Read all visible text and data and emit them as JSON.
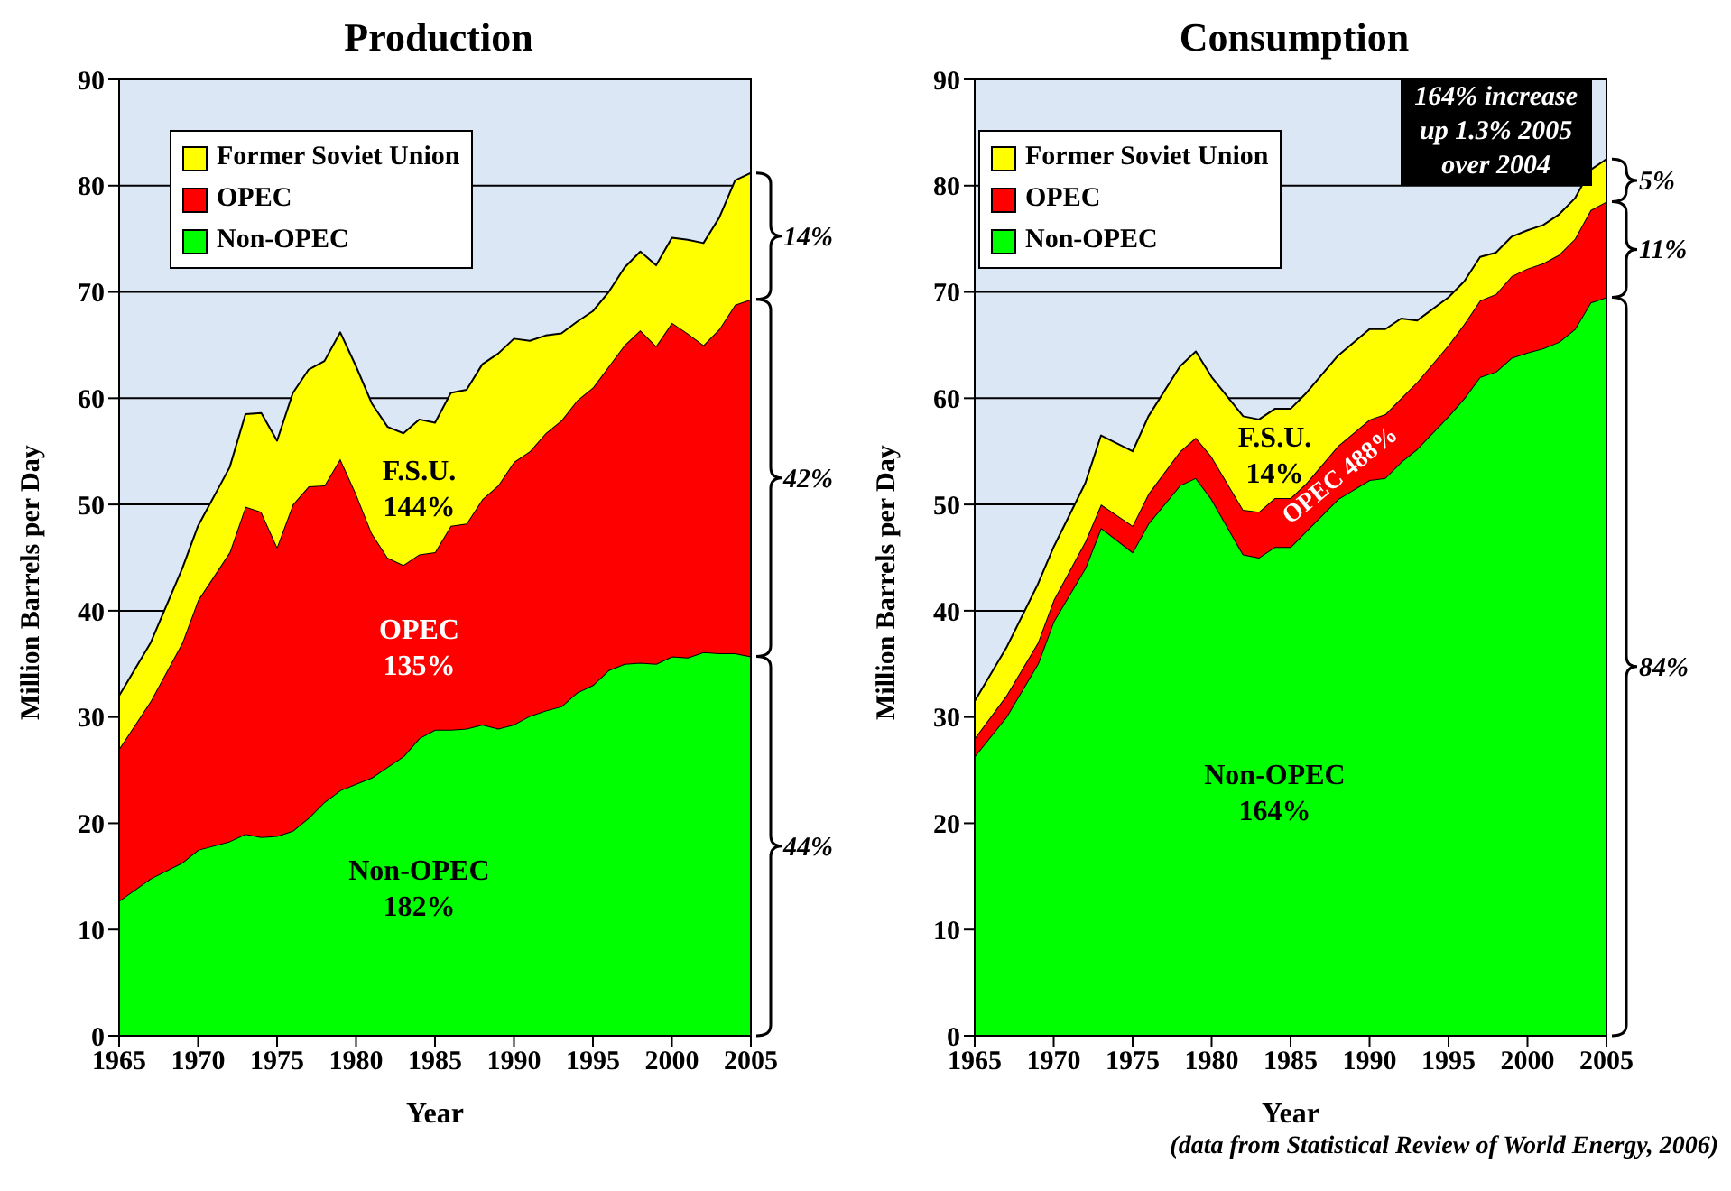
{
  "chart_data": [
    {
      "type": "area",
      "title": "Production",
      "xlabel": "Year",
      "ylabel": "Million Barrels per Day",
      "stacked": true,
      "grid": "y",
      "legend": "top left",
      "xlim": [
        1965,
        2005
      ],
      "ylim": [
        0,
        90
      ],
      "xticks": [
        1965,
        1970,
        1975,
        1980,
        1985,
        1990,
        1995,
        2000,
        2005
      ],
      "yticks": [
        0,
        10,
        20,
        30,
        40,
        50,
        60,
        70,
        80,
        90
      ],
      "x": [
        1965,
        1967,
        1969,
        1970,
        1972,
        1973,
        1974,
        1975,
        1976,
        1977,
        1978,
        1979,
        1980,
        1981,
        1982,
        1983,
        1984,
        1985,
        1986,
        1987,
        1988,
        1989,
        1990,
        1991,
        1992,
        1993,
        1994,
        1995,
        1996,
        1997,
        1998,
        1999,
        2000,
        2001,
        2002,
        2003,
        2004,
        2005
      ],
      "series": [
        {
          "name": "Non-OPEC",
          "color": "#00ff00",
          "values": [
            12.7,
            14.8,
            16.3,
            17.5,
            18.3,
            19,
            18.7,
            18.8,
            19.3,
            20.5,
            22,
            23.1,
            23.7,
            24.3,
            25.3,
            26.3,
            28,
            28.8,
            28.8,
            28.9,
            29.3,
            28.9,
            29.3,
            30.1,
            30.6,
            31,
            32.3,
            33,
            34.4,
            35,
            35.1,
            35,
            35.7,
            35.6,
            36.1,
            36,
            36,
            35.7
          ]
        },
        {
          "name": "OPEC",
          "color": "#ff0000",
          "values": [
            14.3,
            16.7,
            20.7,
            23.5,
            27.2,
            30.8,
            30.6,
            27.2,
            30.7,
            31.2,
            29.8,
            31.2,
            27.3,
            23,
            19.7,
            18,
            17.3,
            16.7,
            19.2,
            19.3,
            21.2,
            22.9,
            24.7,
            24.9,
            26.1,
            26.9,
            27.5,
            28,
            28.6,
            30,
            31.3,
            29.9,
            31.4,
            30.5,
            28.9,
            30.5,
            32.8,
            33.6
          ]
        },
        {
          "name": "Former Soviet Union",
          "color": "#ffff00",
          "values": [
            5,
            5.5,
            7,
            7,
            8,
            8.7,
            9.3,
            10,
            10.5,
            11,
            11.7,
            11.9,
            12,
            12.2,
            12.3,
            12.4,
            12.7,
            12.2,
            12.5,
            12.6,
            12.7,
            12.4,
            11.6,
            10.4,
            9.2,
            8.2,
            7.4,
            7.2,
            7,
            7.3,
            7.4,
            7.6,
            8,
            8.8,
            9.6,
            10.5,
            11.7,
            11.9
          ]
        }
      ],
      "annotations": [
        "F.S.U.\n144%",
        "OPEC\n135%",
        "Non-OPEC\n182%",
        "14%",
        "42%",
        "44%"
      ]
    },
    {
      "type": "area",
      "title": "Consumption",
      "xlabel": "Year",
      "ylabel": "Million Barrels per Day",
      "stacked": true,
      "grid": "y",
      "legend": "top left",
      "xlim": [
        1965,
        2005
      ],
      "ylim": [
        0,
        90
      ],
      "xticks": [
        1965,
        1970,
        1975,
        1980,
        1985,
        1990,
        1995,
        2000,
        2005
      ],
      "yticks": [
        0,
        10,
        20,
        30,
        40,
        50,
        60,
        70,
        80,
        90
      ],
      "x": [
        1965,
        1967,
        1969,
        1970,
        1972,
        1973,
        1975,
        1976,
        1978,
        1979,
        1980,
        1982,
        1983,
        1984,
        1985,
        1986,
        1988,
        1990,
        1991,
        1992,
        1993,
        1995,
        1996,
        1997,
        1998,
        1999,
        2000,
        2001,
        2002,
        2003,
        2004,
        2005
      ],
      "series": [
        {
          "name": "Non-OPEC",
          "color": "#00ff00",
          "values": [
            26.3,
            30,
            35,
            39,
            44,
            47.8,
            45.5,
            48.2,
            51.8,
            52.5,
            50.5,
            45.3,
            45,
            46,
            46,
            47.5,
            50.5,
            52.3,
            52.5,
            54,
            55.2,
            58.3,
            60,
            62,
            62.5,
            63.8,
            64.3,
            64.7,
            65.3,
            66.5,
            69,
            69.5
          ]
        },
        {
          "name": "OPEC",
          "color": "#ff0000",
          "values": [
            1.7,
            2,
            2,
            2,
            2.5,
            2.2,
            2.5,
            2.8,
            3.2,
            3.8,
            4,
            4.2,
            4.3,
            4.6,
            4.6,
            4.5,
            5,
            5.7,
            6,
            6,
            6.3,
            6.7,
            7,
            7.2,
            7.3,
            7.7,
            7.9,
            8,
            8.2,
            8.5,
            8.7,
            9
          ]
        },
        {
          "name": "Former Soviet Union",
          "color": "#ffff00",
          "values": [
            3.5,
            4.5,
            5.5,
            5,
            5.5,
            6.5,
            7,
            7.3,
            8,
            8.1,
            7.5,
            8.8,
            8.7,
            8.4,
            8.4,
            8.5,
            8.5,
            8.5,
            8,
            7.5,
            5.8,
            4.5,
            4,
            4.1,
            3.9,
            3.7,
            3.6,
            3.6,
            3.8,
            3.8,
            3.8,
            4
          ]
        }
      ],
      "annotations": [
        "164% increase\nup 1.3% 2005\nover 2004",
        "(data from Statistical Review of World Energy, 2006)",
        "F.S.U.\n14%",
        "OPEC 488%",
        "Non-OPEC\n164%",
        "5%",
        "11%",
        "84%"
      ]
    }
  ]
}
